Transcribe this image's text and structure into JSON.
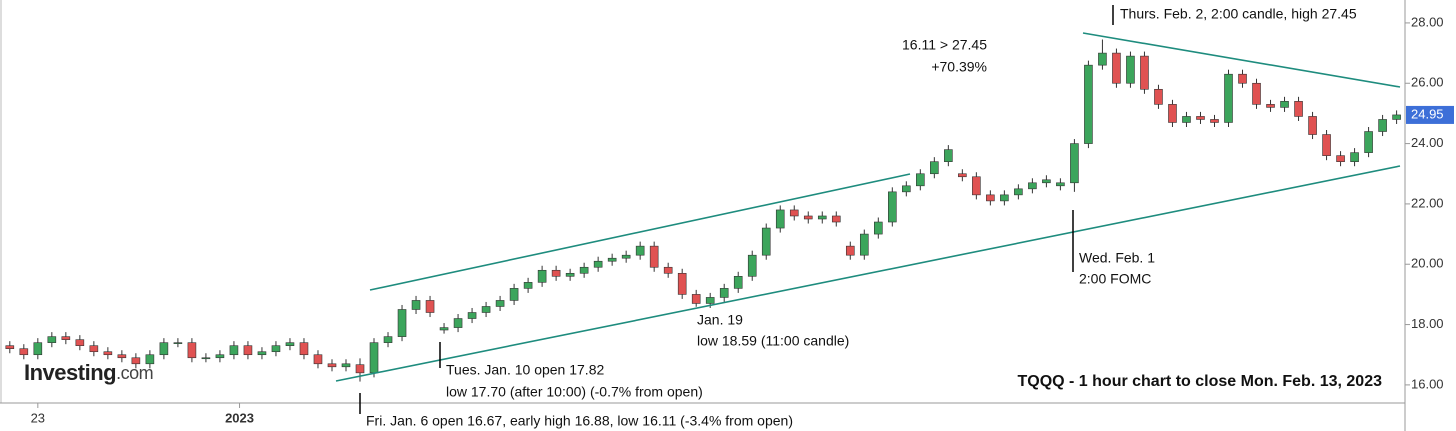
{
  "chart_data": {
    "type": "candlestick",
    "title": "TQQQ - 1 hour chart to close Mon. Feb. 13, 2023",
    "logo": "Investing",
    "logo_suffix": ".com",
    "up_color": "#3ca55c",
    "down_color": "#e05252",
    "grid": false,
    "ylim": [
      15.4,
      28.76
    ],
    "yticks": [
      {
        "value": 16,
        "label": "16.00"
      },
      {
        "value": 18,
        "label": "18.00"
      },
      {
        "value": 20,
        "label": "20.00"
      },
      {
        "value": 22,
        "label": "22.00"
      },
      {
        "value": 24,
        "label": "24.00"
      },
      {
        "value": 26,
        "label": "26.00"
      },
      {
        "value": 28,
        "label": "28.00"
      }
    ],
    "xlim": [
      -0.7,
      99.6
    ],
    "xticks": [
      {
        "value": 2,
        "label": "23"
      },
      {
        "value": 16.4,
        "label": "2023"
      }
    ],
    "x": [
      0,
      1,
      2,
      3,
      4,
      5,
      6,
      7,
      8,
      9,
      10,
      11,
      12,
      13,
      14,
      15,
      16,
      17,
      18,
      19,
      20,
      21,
      22,
      23,
      24,
      25,
      26,
      27,
      28,
      29,
      30,
      31,
      32,
      33,
      34,
      35,
      36,
      37,
      38,
      39,
      40,
      41,
      42,
      43,
      44,
      45,
      46,
      47,
      48,
      49,
      50,
      51,
      52,
      53,
      54,
      55,
      56,
      57,
      58,
      59,
      60,
      61,
      62,
      63,
      64,
      65,
      66,
      67,
      68,
      69,
      70,
      71,
      72,
      73,
      74,
      75,
      76,
      77,
      78,
      79,
      80,
      81,
      82,
      83,
      84,
      85,
      86,
      87,
      88,
      89,
      90,
      91,
      92,
      93,
      94,
      95,
      96,
      97,
      98,
      99
    ],
    "open": [
      17.3,
      17.2,
      17.0,
      17.4,
      17.6,
      17.5,
      17.3,
      17.1,
      17.0,
      16.9,
      16.7,
      17.0,
      17.4,
      17.4,
      16.9,
      16.9,
      17.0,
      17.3,
      17.0,
      17.1,
      17.3,
      17.4,
      17.0,
      16.7,
      16.6,
      16.67,
      16.4,
      17.4,
      17.6,
      18.5,
      18.8,
      17.82,
      17.9,
      18.2,
      18.4,
      18.6,
      18.8,
      19.2,
      19.4,
      19.8,
      19.6,
      19.7,
      19.9,
      20.1,
      20.2,
      20.3,
      20.6,
      19.9,
      19.7,
      19.0,
      18.7,
      18.9,
      19.2,
      19.6,
      20.3,
      21.2,
      21.8,
      21.6,
      21.5,
      21.6,
      20.6,
      20.3,
      21.0,
      21.4,
      22.4,
      22.6,
      23.0,
      23.4,
      23.0,
      22.9,
      22.3,
      22.1,
      22.3,
      22.5,
      22.7,
      22.6,
      22.7,
      24.0,
      26.6,
      27.0,
      26.0,
      26.9,
      25.8,
      25.3,
      24.7,
      24.9,
      24.8,
      24.7,
      26.3,
      26.0,
      25.3,
      25.2,
      25.4,
      24.9,
      24.3,
      23.6,
      23.4,
      23.7,
      24.4,
      24.8
    ],
    "high": [
      17.45,
      17.35,
      17.55,
      17.75,
      17.75,
      17.65,
      17.45,
      17.25,
      17.15,
      17.05,
      17.15,
      17.55,
      17.55,
      17.55,
      17.05,
      17.15,
      17.45,
      17.45,
      17.25,
      17.45,
      17.55,
      17.55,
      17.15,
      16.85,
      16.85,
      16.88,
      17.55,
      17.75,
      18.65,
      18.95,
      18.95,
      18.05,
      18.35,
      18.55,
      18.75,
      18.95,
      19.35,
      19.55,
      19.95,
      19.95,
      19.85,
      20.05,
      20.25,
      20.35,
      20.45,
      20.75,
      20.75,
      20.05,
      19.85,
      19.15,
      19.05,
      19.35,
      19.75,
      20.45,
      21.35,
      21.95,
      21.95,
      21.75,
      21.75,
      21.75,
      20.75,
      21.15,
      21.55,
      22.55,
      22.75,
      23.15,
      23.55,
      23.95,
      23.15,
      23.05,
      22.45,
      22.45,
      22.65,
      22.85,
      22.95,
      22.85,
      24.15,
      26.75,
      27.45,
      27.15,
      27.05,
      27.05,
      25.95,
      25.45,
      25.05,
      25.05,
      24.95,
      26.45,
      26.45,
      26.15,
      25.45,
      25.55,
      25.55,
      25.05,
      24.45,
      23.75,
      23.85,
      24.55,
      24.95,
      25.1
    ],
    "low": [
      17.05,
      16.85,
      16.85,
      17.25,
      17.35,
      17.15,
      16.95,
      16.85,
      16.75,
      16.55,
      16.55,
      16.85,
      17.25,
      16.75,
      16.75,
      16.75,
      16.85,
      16.85,
      16.85,
      16.95,
      17.15,
      16.85,
      16.55,
      16.45,
      16.45,
      16.11,
      16.25,
      17.25,
      17.45,
      18.35,
      18.25,
      17.7,
      17.75,
      18.05,
      18.25,
      18.45,
      18.65,
      19.05,
      19.25,
      19.45,
      19.45,
      19.55,
      19.75,
      19.95,
      20.05,
      20.15,
      19.75,
      19.55,
      18.85,
      18.59,
      18.55,
      18.75,
      19.05,
      19.45,
      20.15,
      21.05,
      21.45,
      21.35,
      21.35,
      21.25,
      20.15,
      20.15,
      20.85,
      21.25,
      22.25,
      22.45,
      22.85,
      23.25,
      22.75,
      22.15,
      21.95,
      21.95,
      22.15,
      22.35,
      22.55,
      22.45,
      22.4,
      23.85,
      26.45,
      25.85,
      25.85,
      25.65,
      25.15,
      24.55,
      24.55,
      24.65,
      24.55,
      24.55,
      25.85,
      25.15,
      25.05,
      25.05,
      24.75,
      24.15,
      23.45,
      23.25,
      23.25,
      23.55,
      24.25,
      24.65
    ],
    "close": [
      17.2,
      17.0,
      17.4,
      17.6,
      17.5,
      17.3,
      17.1,
      17.0,
      16.9,
      16.7,
      17.0,
      17.4,
      17.4,
      16.9,
      16.9,
      17.0,
      17.3,
      17.0,
      17.1,
      17.3,
      17.4,
      17.0,
      16.7,
      16.6,
      16.7,
      16.4,
      17.4,
      17.6,
      18.5,
      18.8,
      18.4,
      17.9,
      18.2,
      18.4,
      18.6,
      18.8,
      19.2,
      19.4,
      19.8,
      19.6,
      19.7,
      19.9,
      20.1,
      20.2,
      20.3,
      20.6,
      19.9,
      19.7,
      19.0,
      18.7,
      18.9,
      19.2,
      19.6,
      20.3,
      21.2,
      21.8,
      21.6,
      21.5,
      21.6,
      21.4,
      20.3,
      21.0,
      21.4,
      22.4,
      22.6,
      23.0,
      23.4,
      23.8,
      22.9,
      22.3,
      22.1,
      22.3,
      22.5,
      22.7,
      22.8,
      22.7,
      24.0,
      26.6,
      27.0,
      26.0,
      26.9,
      25.8,
      25.3,
      24.7,
      24.9,
      24.8,
      24.7,
      26.3,
      26.0,
      25.3,
      25.2,
      25.4,
      24.9,
      24.3,
      23.6,
      23.4,
      23.7,
      24.4,
      24.8,
      24.95
    ],
    "annotations": [
      "Thurs. Feb. 2, 2:00 candle, high 27.45",
      "16.11 > 27.45",
      "+70.39%",
      "Wed. Feb. 1",
      "2:00 FOMC",
      "Jan. 19",
      "low 18.59 (11:00 candle)",
      "Tues. Jan. 10 open 17.82",
      "low 17.70 (after 10:00) (-0.7% from open)",
      "Fri. Jan. 6 open 16.67, early high 16.88, low 16.11 (-3.4% from open)"
    ]
  }
}
